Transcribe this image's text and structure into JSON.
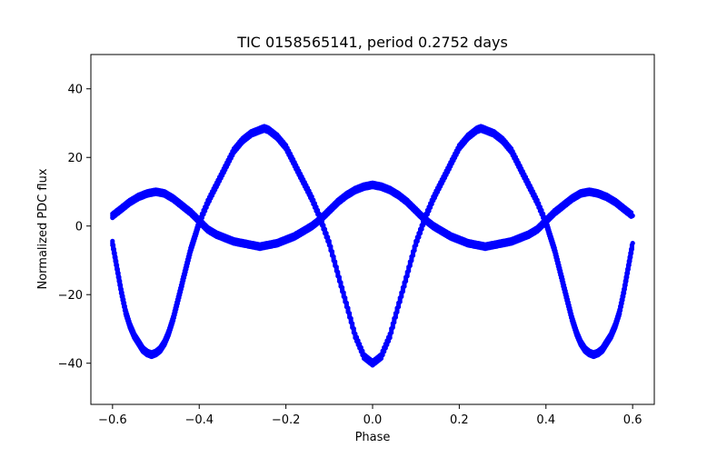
{
  "chart_data": {
    "type": "scatter",
    "title": "TIC 0158565141, period 0.2752 days",
    "xlabel": "Phase",
    "ylabel": "Normalized PDC flux",
    "xlim": [
      -0.65,
      0.65
    ],
    "ylim": [
      -52,
      50
    ],
    "x_ticks": [
      -0.6,
      -0.4,
      -0.2,
      0.0,
      0.2,
      0.4,
      0.6
    ],
    "x_tick_labels": [
      "−0.6",
      "−0.4",
      "−0.2",
      "0.0",
      "0.2",
      "0.4",
      "0.6"
    ],
    "y_ticks": [
      -40,
      -20,
      0,
      20,
      40
    ],
    "y_tick_labels": [
      "−40",
      "−20",
      "0",
      "20",
      "40"
    ],
    "grid": false,
    "marker_color": "#0000ff",
    "series": [
      {
        "values_note_free": true,
        "points": [
          [
            -0.6,
            -5
          ],
          [
            -0.59,
            -12
          ],
          [
            -0.58,
            -19
          ],
          [
            -0.57,
            -25
          ],
          [
            -0.56,
            -29
          ],
          [
            -0.55,
            -32
          ],
          [
            -0.54,
            -34
          ],
          [
            -0.53,
            -36
          ],
          [
            -0.52,
            -37
          ],
          [
            -0.51,
            -37.5
          ],
          [
            -0.5,
            -37
          ],
          [
            -0.49,
            -36
          ],
          [
            -0.48,
            -34
          ],
          [
            -0.47,
            -31
          ],
          [
            -0.46,
            -27
          ],
          [
            -0.45,
            -22
          ],
          [
            -0.44,
            -17
          ],
          [
            -0.43,
            -12
          ],
          [
            -0.42,
            -7
          ],
          [
            -0.41,
            -3
          ],
          [
            -0.4,
            1
          ],
          [
            -0.38,
            7
          ],
          [
            -0.36,
            12
          ],
          [
            -0.34,
            17
          ],
          [
            -0.32,
            22
          ],
          [
            -0.3,
            25
          ],
          [
            -0.28,
            27
          ],
          [
            -0.26,
            28
          ],
          [
            -0.25,
            28.5
          ],
          [
            -0.24,
            28
          ],
          [
            -0.22,
            26
          ],
          [
            -0.2,
            23
          ],
          [
            -0.18,
            18
          ],
          [
            -0.16,
            13
          ],
          [
            -0.14,
            8
          ],
          [
            -0.12,
            2
          ],
          [
            -0.1,
            -5
          ],
          [
            -0.08,
            -14
          ],
          [
            -0.06,
            -23
          ],
          [
            -0.04,
            -32
          ],
          [
            -0.02,
            -38
          ],
          [
            0.0,
            -40
          ],
          [
            0.02,
            -38
          ],
          [
            0.04,
            -32
          ],
          [
            0.06,
            -23
          ],
          [
            0.08,
            -14
          ],
          [
            0.1,
            -5
          ],
          [
            0.12,
            2
          ],
          [
            0.14,
            8
          ],
          [
            0.16,
            13
          ],
          [
            0.18,
            18
          ],
          [
            0.2,
            23
          ],
          [
            0.22,
            26
          ],
          [
            0.24,
            28
          ],
          [
            0.25,
            28.5
          ],
          [
            0.26,
            28
          ],
          [
            0.28,
            27
          ],
          [
            0.3,
            25
          ],
          [
            0.32,
            22
          ],
          [
            0.34,
            17
          ],
          [
            0.36,
            12
          ],
          [
            0.38,
            7
          ],
          [
            0.4,
            1
          ],
          [
            0.41,
            -3
          ],
          [
            0.42,
            -7
          ],
          [
            0.43,
            -12
          ],
          [
            0.44,
            -17
          ],
          [
            0.45,
            -22
          ],
          [
            0.46,
            -27
          ],
          [
            0.47,
            -31
          ],
          [
            0.48,
            -34
          ],
          [
            0.49,
            -36
          ],
          [
            0.5,
            -37
          ],
          [
            0.51,
            -37.5
          ],
          [
            0.52,
            -37
          ],
          [
            0.53,
            -36
          ],
          [
            0.54,
            -34
          ],
          [
            0.55,
            -32
          ],
          [
            0.56,
            -29
          ],
          [
            0.57,
            -25
          ],
          [
            0.58,
            -19
          ],
          [
            0.59,
            -12
          ],
          [
            0.6,
            -5
          ]
        ]
      },
      {
        "points": [
          [
            -0.6,
            3
          ],
          [
            -0.58,
            5
          ],
          [
            -0.56,
            7
          ],
          [
            -0.54,
            8.5
          ],
          [
            -0.52,
            9.5
          ],
          [
            -0.5,
            10
          ],
          [
            -0.48,
            9.5
          ],
          [
            -0.46,
            8
          ],
          [
            -0.44,
            6
          ],
          [
            -0.42,
            4
          ],
          [
            -0.4,
            1.5
          ],
          [
            -0.38,
            -1
          ],
          [
            -0.36,
            -2.5
          ],
          [
            -0.34,
            -3.5
          ],
          [
            -0.32,
            -4.5
          ],
          [
            -0.3,
            -5
          ],
          [
            -0.28,
            -5.5
          ],
          [
            -0.26,
            -6
          ],
          [
            -0.24,
            -5.5
          ],
          [
            -0.22,
            -5
          ],
          [
            -0.2,
            -4
          ],
          [
            -0.18,
            -3
          ],
          [
            -0.16,
            -1.5
          ],
          [
            -0.14,
            0
          ],
          [
            -0.12,
            2
          ],
          [
            -0.1,
            4.5
          ],
          [
            -0.08,
            7
          ],
          [
            -0.06,
            9
          ],
          [
            -0.04,
            10.5
          ],
          [
            -0.02,
            11.5
          ],
          [
            0.0,
            12
          ],
          [
            0.02,
            11.5
          ],
          [
            0.04,
            10.5
          ],
          [
            0.06,
            9
          ],
          [
            0.08,
            7
          ],
          [
            0.1,
            4.5
          ],
          [
            0.12,
            2
          ],
          [
            0.14,
            0
          ],
          [
            0.16,
            -1.5
          ],
          [
            0.18,
            -3
          ],
          [
            0.2,
            -4
          ],
          [
            0.22,
            -5
          ],
          [
            0.24,
            -5.5
          ],
          [
            0.26,
            -6
          ],
          [
            0.28,
            -5.5
          ],
          [
            0.3,
            -5
          ],
          [
            0.32,
            -4.5
          ],
          [
            0.34,
            -3.5
          ],
          [
            0.36,
            -2.5
          ],
          [
            0.38,
            -1
          ],
          [
            0.4,
            1.5
          ],
          [
            0.42,
            4
          ],
          [
            0.44,
            6
          ],
          [
            0.46,
            8
          ],
          [
            0.48,
            9.5
          ],
          [
            0.5,
            10
          ],
          [
            0.52,
            9.5
          ],
          [
            0.54,
            8.5
          ],
          [
            0.56,
            7
          ],
          [
            0.58,
            5
          ],
          [
            0.6,
            3
          ]
        ]
      }
    ]
  }
}
